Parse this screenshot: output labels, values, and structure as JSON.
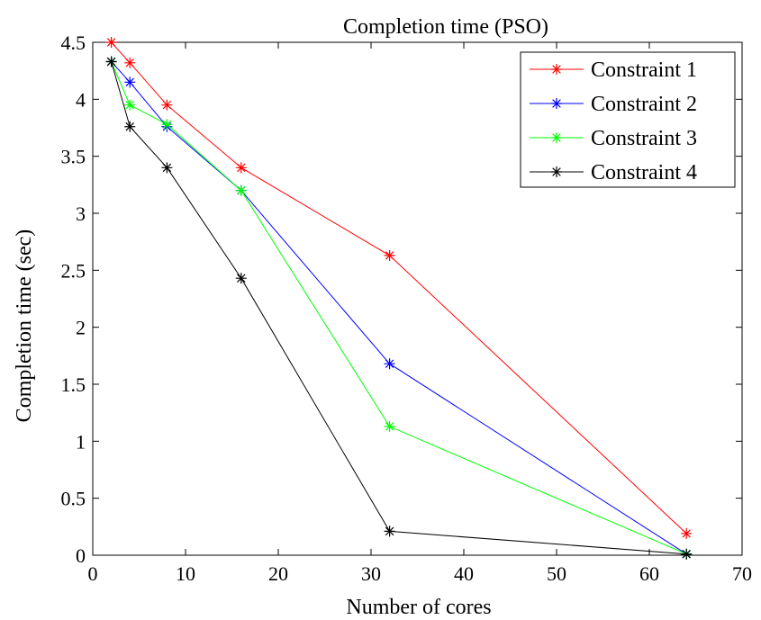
{
  "chart_data": {
    "type": "line",
    "title": "Completion time (PSO)",
    "xlabel": "Number of cores",
    "ylabel": "Completion time (sec)",
    "xlim": [
      0,
      70
    ],
    "ylim": [
      0,
      4.5
    ],
    "xticks": [
      "0",
      "10",
      "20",
      "30",
      "40",
      "50",
      "60",
      "70"
    ],
    "yticks": [
      "0",
      "0.5",
      "1",
      "1.5",
      "2",
      "2.5",
      "3",
      "3.5",
      "4",
      "4.5"
    ],
    "grid": false,
    "legend_position": "top-right",
    "x": [
      2,
      4,
      8,
      16,
      32,
      64
    ],
    "series": [
      {
        "name": "Constraint 1",
        "color": "#ff0000",
        "values": [
          4.5,
          4.32,
          3.95,
          3.4,
          2.63,
          0.19
        ]
      },
      {
        "name": "Constraint 2",
        "color": "#0000ff",
        "values": [
          4.33,
          4.15,
          3.76,
          3.2,
          1.68,
          0.01
        ]
      },
      {
        "name": "Constraint 3",
        "color": "#00ff00",
        "values": [
          4.33,
          3.95,
          3.78,
          3.2,
          1.13,
          0.01
        ]
      },
      {
        "name": "Constraint 4",
        "color": "#000000",
        "values": [
          4.33,
          3.76,
          3.4,
          2.43,
          0.21,
          0.01
        ]
      }
    ]
  }
}
